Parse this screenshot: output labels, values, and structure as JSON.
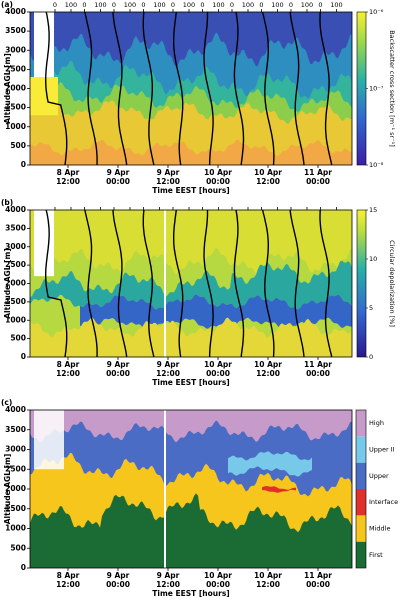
{
  "chart_data": [
    {
      "type": "heatmap",
      "panel": "(a)",
      "ylabel": "Altitude AGL [m]",
      "xlabel": "Time EEST [hours]",
      "ylim": [
        0,
        4000
      ],
      "yticks": [
        0,
        500,
        1000,
        1500,
        2000,
        2500,
        3000,
        3500,
        4000
      ],
      "xtick_labels": [
        [
          "8 Apr",
          "12:00"
        ],
        [
          "9 Apr",
          "00:00"
        ],
        [
          "9 Apr",
          "12:00"
        ],
        [
          "10 Apr",
          "00:00"
        ],
        [
          "10 Apr",
          "12:00"
        ],
        [
          "11 Apr",
          "00:00"
        ]
      ],
      "sonde_labels": [
        [
          0,
          100
        ],
        [
          0,
          100
        ],
        [
          0,
          100
        ],
        [
          0,
          100
        ],
        [
          0,
          100
        ],
        [
          0,
          100
        ],
        [
          0,
          100
        ],
        [
          0,
          100
        ],
        [
          0,
          100
        ],
        [
          0,
          100
        ]
      ],
      "colorbar": {
        "label": "Backscatter cross section [m⁻¹ sr⁻¹]",
        "log": true,
        "lim": [
          1e-08,
          1e-06
        ],
        "ticks": [
          {
            "value": 1e-08,
            "label": "10⁻⁸"
          },
          {
            "value": 1e-07,
            "label": "10⁻⁷"
          },
          {
            "value": 1e-06,
            "label": "10⁻⁶"
          }
        ]
      }
    },
    {
      "type": "heatmap",
      "panel": "(b)",
      "ylabel": "Altitude AGL [m]",
      "xlabel": "Time EEST [hours]",
      "ylim": [
        0,
        4000
      ],
      "yticks": [
        0,
        500,
        1000,
        1500,
        2000,
        2500,
        3000,
        3500,
        4000
      ],
      "xtick_labels": [
        [
          "8 Apr",
          "12:00"
        ],
        [
          "9 Apr",
          "00:00"
        ],
        [
          "9 Apr",
          "12:00"
        ],
        [
          "10 Apr",
          "00:00"
        ],
        [
          "10 Apr",
          "12:00"
        ],
        [
          "11 Apr",
          "00:00"
        ]
      ],
      "colorbar": {
        "label": "Circular depolarization [%]",
        "log": false,
        "lim": [
          0,
          15
        ],
        "ticks": [
          0,
          5,
          10,
          15
        ]
      }
    },
    {
      "type": "classification",
      "panel": "(c)",
      "ylabel": "Altitude AGL [m]",
      "xlabel": "Time EEST [hours]",
      "ylim": [
        0,
        4000
      ],
      "yticks": [
        0,
        500,
        1000,
        1500,
        2000,
        2500,
        3000,
        3500,
        4000
      ],
      "xtick_labels": [
        [
          "8 Apr",
          "12:00"
        ],
        [
          "9 Apr",
          "00:00"
        ],
        [
          "9 Apr",
          "12:00"
        ],
        [
          "10 Apr",
          "00:00"
        ],
        [
          "10 Apr",
          "12:00"
        ],
        [
          "11 Apr",
          "00:00"
        ]
      ],
      "classes": [
        {
          "name": "First",
          "color": "#1b6b34"
        },
        {
          "name": "Middle",
          "color": "#f6c61c"
        },
        {
          "name": "Interface",
          "color": "#e0302a"
        },
        {
          "name": "Upper",
          "color": "#4a6cc4"
        },
        {
          "name": "Upper II",
          "color": "#78c8ea"
        },
        {
          "name": "High",
          "color": "#c79bc9"
        }
      ]
    }
  ]
}
